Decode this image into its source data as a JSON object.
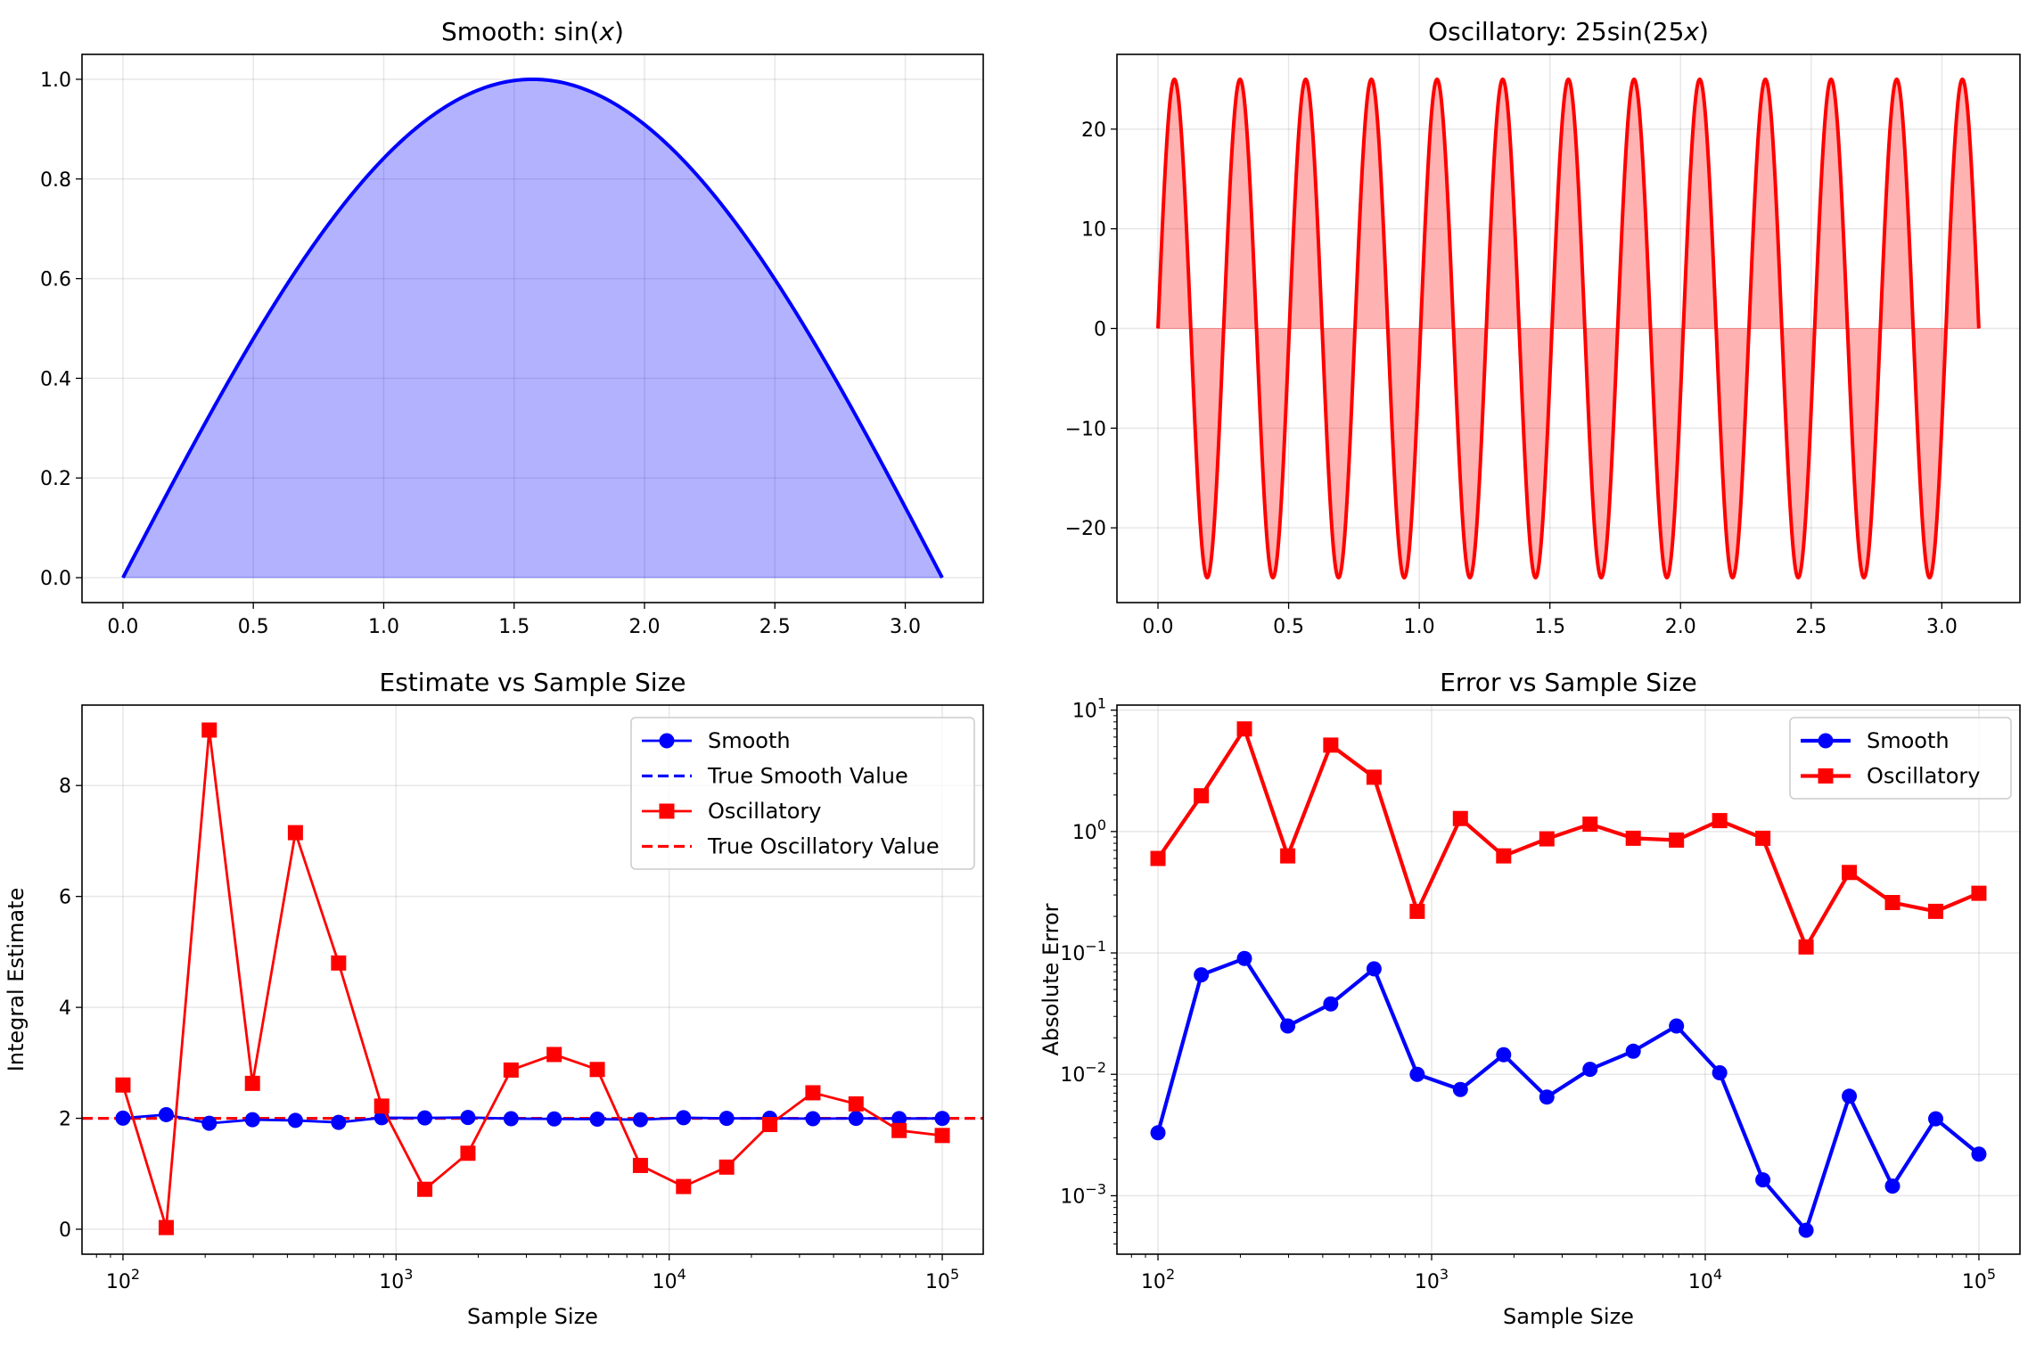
{
  "chart_data": [
    {
      "id": "smooth",
      "type": "area",
      "title_prefix": "Smooth: sin(",
      "title_var": "x",
      "title_suffix": ")",
      "function": "sin(x)",
      "x_range": [
        0,
        3.14159
      ],
      "xlim": [
        -0.157,
        3.299
      ],
      "ylim": [
        -0.05,
        1.05
      ],
      "xticks": [
        0.0,
        0.5,
        1.0,
        1.5,
        2.0,
        2.5,
        3.0
      ],
      "xtick_labels": [
        "0.0",
        "0.5",
        "1.0",
        "1.5",
        "2.0",
        "2.5",
        "3.0"
      ],
      "yticks": [
        0.0,
        0.2,
        0.4,
        0.6,
        0.8,
        1.0
      ],
      "ytick_labels": [
        "0.0",
        "0.2",
        "0.4",
        "0.6",
        "0.8",
        "1.0"
      ],
      "xlabel": "",
      "ylabel": "",
      "grid": true,
      "line_color": "#0000ff",
      "fill_color": "#0000ff",
      "fill_alpha": 0.3
    },
    {
      "id": "oscillatory",
      "type": "area",
      "title_prefix": "Oscillatory: 25sin(25",
      "title_var": "x",
      "title_suffix": ")",
      "function": "25*sin(25*x)",
      "x_range": [
        0,
        3.14159
      ],
      "xlim": [
        -0.157,
        3.299
      ],
      "ylim": [
        -27.5,
        27.5
      ],
      "xticks": [
        0.0,
        0.5,
        1.0,
        1.5,
        2.0,
        2.5,
        3.0
      ],
      "xtick_labels": [
        "0.0",
        "0.5",
        "1.0",
        "1.5",
        "2.0",
        "2.5",
        "3.0"
      ],
      "yticks": [
        -20,
        -10,
        0,
        10,
        20
      ],
      "ytick_labels": [
        "−20",
        "−10",
        "0",
        "10",
        "20"
      ],
      "xlabel": "",
      "ylabel": "",
      "grid": true,
      "line_color": "#ff0000",
      "fill_color": "#ff0000",
      "fill_alpha": 0.3
    },
    {
      "id": "estimate",
      "type": "line",
      "title": "Estimate vs Sample Size",
      "xlabel": "Sample Size",
      "ylabel": "Integral Estimate",
      "xscale": "log",
      "xlim": [
        70.8,
        141254
      ],
      "ylim": [
        -0.45,
        9.45
      ],
      "xticks": [
        100,
        1000,
        10000,
        100000
      ],
      "xtick_labels": [
        [
          "10",
          "2"
        ],
        [
          "10",
          "3"
        ],
        [
          "10",
          "4"
        ],
        [
          "10",
          "5"
        ]
      ],
      "yticks": [
        0,
        2,
        4,
        6,
        8
      ],
      "ytick_labels": [
        "0",
        "2",
        "4",
        "6",
        "8"
      ],
      "grid": true,
      "legend_position": "upper-right",
      "x": [
        100,
        144,
        207,
        298,
        428,
        616,
        886,
        1274,
        1833,
        2637,
        3793,
        5456,
        7848,
        11288,
        16238,
        23357,
        33598,
        48329,
        69519,
        100000
      ],
      "series": [
        {
          "name": "Smooth",
          "color": "#0000ff",
          "marker": "circle",
          "style": "solid",
          "values": [
            2.003,
            2.066,
            1.91,
            1.975,
            1.962,
            1.926,
            2.01,
            2.0075,
            2.0145,
            1.9935,
            1.989,
            1.9845,
            1.975,
            2.0103,
            1.99865,
            2.00052,
            1.9934,
            1.9988,
            1.9957,
            1.9978
          ]
        },
        {
          "name": "True Smooth Value",
          "color": "#0000ff",
          "style": "dashed",
          "constant": 2.0
        },
        {
          "name": "Oscillatory",
          "color": "#ff0000",
          "marker": "square",
          "style": "solid",
          "values": [
            2.6,
            0.03,
            9.0,
            2.63,
            7.15,
            4.8,
            2.22,
            0.72,
            1.37,
            2.87,
            3.15,
            2.88,
            1.15,
            0.77,
            1.12,
            1.888,
            2.46,
            2.26,
            1.78,
            1.69
          ]
        },
        {
          "name": "True Oscillatory Value",
          "color": "#ff0000",
          "style": "dashed",
          "constant": 2.0
        }
      ]
    },
    {
      "id": "error",
      "type": "line",
      "title": "Error vs Sample Size",
      "xlabel": "Sample Size",
      "ylabel": "Absolute Error",
      "xscale": "log",
      "yscale": "log",
      "xlim": [
        70.8,
        141254
      ],
      "ylim": [
        0.00033,
        11
      ],
      "xticks": [
        100,
        1000,
        10000,
        100000
      ],
      "xtick_labels": [
        [
          "10",
          "2"
        ],
        [
          "10",
          "3"
        ],
        [
          "10",
          "4"
        ],
        [
          "10",
          "5"
        ]
      ],
      "yticks": [
        0.001,
        0.01,
        0.1,
        1,
        10
      ],
      "ytick_labels": [
        [
          "10",
          "−3"
        ],
        [
          "10",
          "−2"
        ],
        [
          "10",
          "−1"
        ],
        [
          "10",
          "0"
        ],
        [
          "10",
          "1"
        ]
      ],
      "grid": true,
      "legend_position": "upper-right",
      "x": [
        100,
        144,
        207,
        298,
        428,
        616,
        886,
        1274,
        1833,
        2637,
        3793,
        5456,
        7848,
        11288,
        16238,
        23357,
        33598,
        48329,
        69519,
        100000
      ],
      "series": [
        {
          "name": "Smooth",
          "color": "#0000ff",
          "marker": "circle",
          "style": "solid",
          "values": [
            0.0033,
            0.066,
            0.09,
            0.025,
            0.038,
            0.074,
            0.01,
            0.0075,
            0.0145,
            0.0065,
            0.011,
            0.0155,
            0.025,
            0.0103,
            0.00135,
            0.00052,
            0.0066,
            0.0012,
            0.0043,
            0.0022
          ]
        },
        {
          "name": "Oscillatory",
          "color": "#ff0000",
          "marker": "square",
          "style": "solid",
          "values": [
            0.6,
            1.97,
            7.0,
            0.63,
            5.15,
            2.8,
            0.22,
            1.28,
            0.63,
            0.87,
            1.15,
            0.88,
            0.85,
            1.23,
            0.88,
            0.112,
            0.46,
            0.26,
            0.22,
            0.31
          ]
        }
      ]
    }
  ]
}
